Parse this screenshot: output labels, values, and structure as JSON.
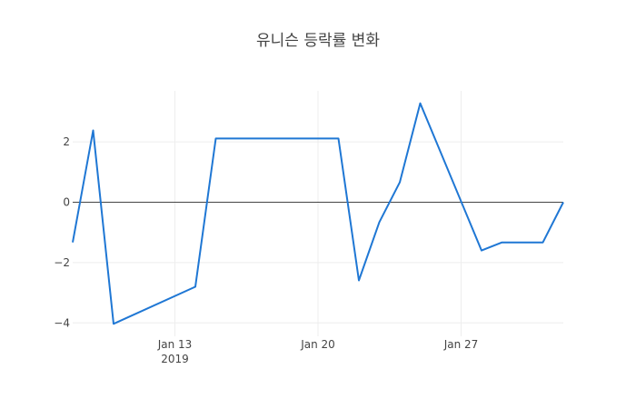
{
  "chart_data": {
    "type": "line",
    "title": "유니슨 등락률 변화",
    "xlabel": "",
    "ylabel": "",
    "x": [
      "2019-01-08",
      "2019-01-09",
      "2019-01-10",
      "2019-01-14",
      "2019-01-15",
      "2019-01-21",
      "2019-01-22",
      "2019-01-23",
      "2019-01-24",
      "2019-01-25",
      "2019-01-28",
      "2019-01-29",
      "2019-01-31",
      "2019-02-01"
    ],
    "series": [
      {
        "name": "등락률",
        "color": "#1f77d4",
        "values": [
          -1.33,
          2.38,
          -4.03,
          -2.8,
          2.11,
          2.11,
          -2.59,
          -0.66,
          0.66,
          3.28,
          -1.6,
          -1.33,
          -1.33,
          0.0
        ]
      }
    ],
    "yticks": [
      -4,
      -2,
      0,
      2
    ],
    "ytick_labels": [
      "−4",
      "−2",
      "0",
      "2"
    ],
    "xticks": [
      {
        "date": "2019-01-13",
        "label": "Jan 13",
        "sublabel": "2019"
      },
      {
        "date": "2019-01-20",
        "label": "Jan 20",
        "sublabel": ""
      },
      {
        "date": "2019-01-27",
        "label": "Jan 27",
        "sublabel": ""
      }
    ],
    "ylim": [
      -4.3,
      3.75
    ],
    "xlim": [
      "2019-01-08",
      "2019-02-01"
    ],
    "grid": true,
    "legend": "none"
  }
}
